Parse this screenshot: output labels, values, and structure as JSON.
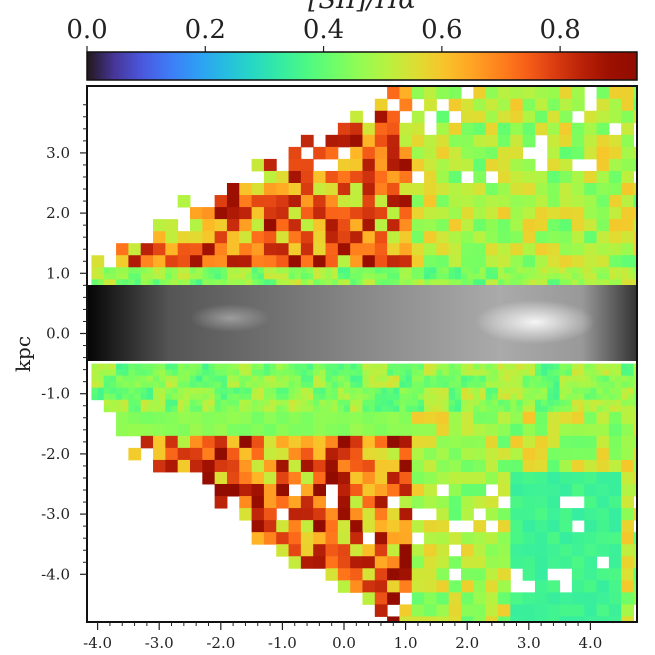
{
  "chart_data": {
    "type": "heatmap",
    "title": "",
    "colorbar": {
      "label": "[SII]/Hα",
      "colormap": "turbo",
      "range": [
        0.0,
        0.93
      ],
      "tick_labels": [
        "0.0",
        "0.2",
        "0.4",
        "0.6",
        "0.8"
      ],
      "ticks": [
        0.0,
        0.2,
        0.4,
        0.6,
        0.8
      ],
      "position": "top"
    },
    "xlabel": "",
    "ylabel": "kpc",
    "xlim": [
      -4.1,
      4.8
    ],
    "ylim": [
      -4.8,
      4.1
    ],
    "x_ticks": [
      -4.0,
      -3.0,
      -2.0,
      -1.0,
      0.0,
      1.0,
      2.0,
      3.0,
      4.0
    ],
    "x_tick_labels": [
      "-4.0",
      "-3.0",
      "-2.0",
      "-1.0",
      "0.0",
      "1.0",
      "2.0",
      "3.0",
      "4.0"
    ],
    "y_ticks": [
      3.0,
      2.0,
      1.0,
      0.0,
      -1.0,
      -2.0,
      -3.0,
      -4.0
    ],
    "y_tick_labels": [
      "3.0",
      "2.0",
      "1.0",
      "0.0",
      "-1.0",
      "-2.0",
      "-3.0",
      "-4.0"
    ],
    "midplane_band_kpc": [
      -0.45,
      0.8
    ],
    "midplane_band_style": "grayscale continuum image",
    "typical_values": {
      "near_midplane": 0.45,
      "extraplanar_upper_left": 0.75,
      "extraplanar_lower_left": 0.75,
      "lower_right_block": 0.33
    },
    "grid": false
  }
}
